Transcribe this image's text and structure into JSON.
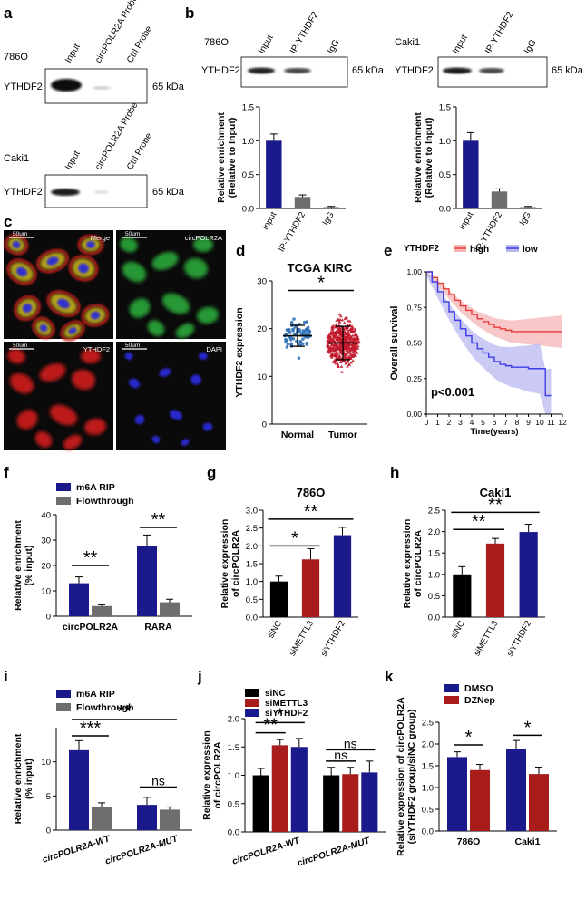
{
  "colors": {
    "blue": "#1a1a8c",
    "gray": "#6e6e6e",
    "red": "#a81c1c",
    "black": "#000000",
    "green": "#39a845",
    "km_high": "#e83c3c",
    "km_low": "#3c3ce8",
    "km_high_ci": "#f5b5b5",
    "km_low_ci": "#b8b8f0"
  },
  "panel_a": {
    "letter": "a",
    "top_cell": "786O",
    "bottom_cell": "Caki1",
    "lanes": [
      "Input",
      "circPOLR2A Probe",
      "Ctrl Probe"
    ],
    "protein": "YTHDF2",
    "size": "65 kDa"
  },
  "panel_b": {
    "letter": "b",
    "left_cell": "786O",
    "right_cell": "Caki1",
    "lanes": [
      "Input",
      "IP-YTHDF2",
      "IgG"
    ],
    "protein": "YTHDF2",
    "size": "65 kDa"
  },
  "panel_c": {
    "letter": "c",
    "labels": [
      "Merge",
      "circPOLR2A",
      "YTHDF2",
      "DAPI"
    ],
    "scale": "50um"
  },
  "panel_d": {
    "letter": "d"
  },
  "panel_e": {
    "letter": "e"
  },
  "panel_f": {
    "letter": "f"
  },
  "panel_g": {
    "letter": "g"
  },
  "panel_h": {
    "letter": "h"
  },
  "panel_i": {
    "letter": "i"
  },
  "panel_j": {
    "letter": "j"
  },
  "panel_k": {
    "letter": "k"
  },
  "chart_data": [
    {
      "id": "b_left",
      "type": "bar",
      "categories": [
        "Input",
        "IP-YTHDF2",
        "IgG"
      ],
      "values": [
        1.0,
        0.17,
        0.02
      ],
      "errors": [
        0.1,
        0.03,
        0.01
      ],
      "bar_colors": [
        "blue",
        "gray",
        "gray"
      ],
      "ylabel": "Relative enrichment\n(Relative to Input)",
      "ylim": [
        0,
        1.5
      ],
      "yticks": [
        "0.0",
        "0.5",
        "1.0",
        "1.5"
      ]
    },
    {
      "id": "b_right",
      "type": "bar",
      "categories": [
        "Input",
        "IP-YTHDF2",
        "IgG"
      ],
      "values": [
        1.0,
        0.25,
        0.02
      ],
      "errors": [
        0.12,
        0.04,
        0.01
      ],
      "bar_colors": [
        "blue",
        "gray",
        "gray"
      ],
      "ylabel": "Relative enrichment\n(Relative to Input)",
      "ylim": [
        0,
        1.5
      ],
      "yticks": [
        "0.0",
        "0.5",
        "1.0",
        "1.5"
      ]
    },
    {
      "id": "d",
      "type": "scatter",
      "title": "TCGA KIRC",
      "categories": [
        "Normal",
        "Tumor"
      ],
      "means": [
        18.5,
        17.0
      ],
      "sds": [
        2.2,
        3.5
      ],
      "ylabel": "YTHDF2 expression",
      "ylim": [
        0,
        30
      ],
      "yticks": [
        "0",
        "10",
        "20",
        "30"
      ],
      "significance": "*"
    },
    {
      "id": "e",
      "type": "line",
      "title": "YTHDF2",
      "legend": [
        "high",
        "low"
      ],
      "xlabel": "Time(years)",
      "ylabel": "Overall survival",
      "xlim": [
        0,
        12
      ],
      "ylim": [
        0,
        1
      ],
      "xticks": [
        "0",
        "1",
        "2",
        "3",
        "4",
        "5",
        "6",
        "7",
        "8",
        "9",
        "10",
        "11",
        "12"
      ],
      "yticks": [
        "0.00",
        "0.25",
        "0.50",
        "0.75",
        "1.00"
      ],
      "series": [
        {
          "name": "high",
          "x": [
            0,
            0.5,
            1,
            1.5,
            2,
            2.5,
            3,
            3.5,
            4,
            4.5,
            5,
            5.5,
            6,
            6.5,
            7,
            7.5,
            8,
            9,
            10,
            11,
            12
          ],
          "y": [
            1,
            0.96,
            0.92,
            0.88,
            0.84,
            0.8,
            0.76,
            0.73,
            0.7,
            0.67,
            0.65,
            0.63,
            0.61,
            0.6,
            0.59,
            0.58,
            0.58,
            0.58,
            0.58,
            0.58,
            0.58
          ]
        },
        {
          "name": "low",
          "x": [
            0,
            0.5,
            1,
            1.5,
            2,
            2.5,
            3,
            3.5,
            4,
            4.5,
            5,
            5.5,
            6,
            6.5,
            7,
            7.5,
            8,
            9,
            10,
            10.5,
            11
          ],
          "y": [
            1,
            0.93,
            0.86,
            0.79,
            0.72,
            0.66,
            0.6,
            0.55,
            0.5,
            0.46,
            0.43,
            0.4,
            0.37,
            0.35,
            0.34,
            0.33,
            0.33,
            0.32,
            0.32,
            0.13,
            0.13
          ]
        }
      ],
      "annotation": "p<0.001"
    },
    {
      "id": "f",
      "type": "bar",
      "categories": [
        "circPOLR2A",
        "RARA"
      ],
      "series": [
        {
          "name": "m6A RIP",
          "color": "blue",
          "values": [
            13,
            27.5
          ],
          "errors": [
            2.5,
            4.5
          ]
        },
        {
          "name": "Flowthrough",
          "color": "gray",
          "values": [
            4,
            5.5
          ],
          "errors": [
            0.5,
            1.2
          ]
        }
      ],
      "ylabel": "Relative enrichment\n(% input)",
      "ylim": [
        0,
        40
      ],
      "yticks": [
        "0",
        "10",
        "20",
        "30",
        "40"
      ],
      "significance": [
        "**",
        "**"
      ]
    },
    {
      "id": "g",
      "type": "bar",
      "title": "786O",
      "categories": [
        "siNC",
        "siMETTL3",
        "siYTHDF2"
      ],
      "values": [
        1.0,
        1.62,
        2.3
      ],
      "errors": [
        0.15,
        0.3,
        0.22
      ],
      "bar_colors": [
        "black",
        "red",
        "blue"
      ],
      "ylabel": "Relative expression\nof circPOLR2A",
      "ylim": [
        0,
        3.0
      ],
      "yticks": [
        "0.0",
        "0.5",
        "1.0",
        "1.5",
        "2.0",
        "2.5",
        "3.0"
      ],
      "significance": [
        "*",
        "**"
      ]
    },
    {
      "id": "h",
      "type": "bar",
      "title": "Caki1",
      "categories": [
        "siNC",
        "siMETTL3",
        "siYTHDF2"
      ],
      "values": [
        1.0,
        1.72,
        1.99
      ],
      "errors": [
        0.18,
        0.12,
        0.18
      ],
      "bar_colors": [
        "black",
        "red",
        "blue"
      ],
      "ylabel": "Relative expression\nof circPOLR2A",
      "ylim": [
        0,
        2.5
      ],
      "yticks": [
        "0.0",
        "0.5",
        "1.0",
        "1.5",
        "2.0",
        "2.5"
      ],
      "significance": [
        "**",
        "**"
      ]
    },
    {
      "id": "i",
      "type": "bar",
      "categories": [
        "circPOLR2A-WT",
        "circPOLR2A-MUT"
      ],
      "series": [
        {
          "name": "m6A RIP",
          "color": "blue",
          "values": [
            11.7,
            3.7
          ],
          "errors": [
            1.4,
            1.1
          ]
        },
        {
          "name": "Flowthrough",
          "color": "gray",
          "values": [
            3.4,
            3.0
          ],
          "errors": [
            0.6,
            0.4
          ]
        }
      ],
      "ylabel": "Relative enrichment\n(% input)",
      "ylim": [
        0,
        15
      ],
      "yticks": [
        "0",
        "5",
        "10"
      ],
      "significance": [
        "***",
        "ns",
        "**"
      ]
    },
    {
      "id": "j",
      "type": "bar",
      "categories": [
        "circPOLR2A-WT",
        "circPOLR2A-MUT"
      ],
      "series": [
        {
          "name": "siNC",
          "color": "black",
          "values": [
            1.0,
            1.0
          ],
          "errors": [
            0.12,
            0.14
          ]
        },
        {
          "name": "siMETTL3",
          "color": "red",
          "values": [
            1.53,
            1.02
          ],
          "errors": [
            0.1,
            0.12
          ]
        },
        {
          "name": "siYTHDF2",
          "color": "blue",
          "values": [
            1.5,
            1.05
          ],
          "errors": [
            0.15,
            0.2
          ]
        }
      ],
      "ylabel": "Relative expression\nof circPOLR2A",
      "ylim": [
        0,
        2.0
      ],
      "yticks": [
        "0.0",
        "0.5",
        "1.0",
        "1.5",
        "2.0"
      ],
      "significance": [
        "**",
        "*",
        "ns",
        "ns"
      ]
    },
    {
      "id": "k",
      "type": "bar",
      "categories": [
        "786O",
        "Caki1"
      ],
      "series": [
        {
          "name": "DMSO",
          "color": "blue",
          "values": [
            1.7,
            1.88
          ],
          "errors": [
            0.12,
            0.2
          ]
        },
        {
          "name": "DZNep",
          "color": "red",
          "values": [
            1.4,
            1.31
          ],
          "errors": [
            0.13,
            0.16
          ]
        }
      ],
      "ylabel": "Relative expression of circPOLR2A\n(siYTHDF2 group/siNC group)",
      "ylim": [
        0,
        2.5
      ],
      "yticks": [
        "0.0",
        "0.5",
        "1.0",
        "1.5",
        "2.0",
        "2.5"
      ],
      "significance": [
        "*",
        "*"
      ]
    }
  ]
}
